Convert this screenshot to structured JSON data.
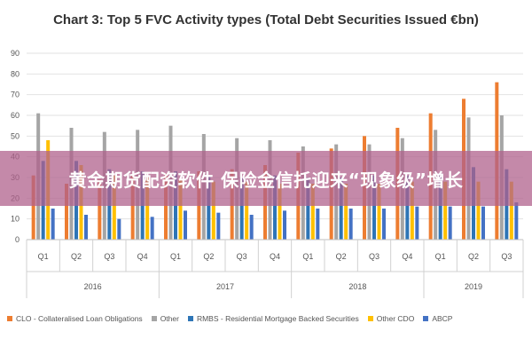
{
  "chart_data": {
    "type": "bar",
    "title": "Chart 3: Top 5 FVC Activity types (Total Debt Securities Issued €bn)",
    "ylim": [
      0,
      90
    ],
    "yticks": [
      0,
      10,
      20,
      30,
      40,
      50,
      60,
      70,
      80,
      90
    ],
    "grid": true,
    "legend_position": "bottom",
    "categories": [
      "Q1",
      "Q2",
      "Q3",
      "Q4",
      "Q1",
      "Q2",
      "Q3",
      "Q4",
      "Q1",
      "Q2",
      "Q3",
      "Q4",
      "Q1",
      "Q2",
      "Q3"
    ],
    "year_groups": [
      {
        "label": "2016",
        "count": 4
      },
      {
        "label": "2017",
        "count": 4
      },
      {
        "label": "2018",
        "count": 4
      },
      {
        "label": "2019",
        "count": 3
      }
    ],
    "series": [
      {
        "name": "CLO - Collateralised Loan Obligations",
        "color": "#ed7d31",
        "values": [
          31,
          27,
          29,
          31,
          32,
          33,
          34,
          36,
          42,
          44,
          50,
          54,
          61,
          68,
          76
        ]
      },
      {
        "name": "Other",
        "color": "#a5a5a5",
        "values": [
          61,
          54,
          52,
          53,
          55,
          51,
          49,
          48,
          45,
          46,
          46,
          49,
          53,
          59,
          60
        ]
      },
      {
        "name": "RMBS - Residential Mortgage Backed Securities",
        "color": "#2e75b6",
        "values": [
          38,
          38,
          34,
          33,
          33,
          31,
          30,
          31,
          30,
          30,
          31,
          31,
          32,
          35,
          34
        ]
      },
      {
        "name": "Other CDO",
        "color": "#ffc000",
        "values": [
          48,
          36,
          31,
          30,
          29,
          28,
          28,
          27,
          27,
          27,
          27,
          28,
          28,
          28,
          28
        ]
      },
      {
        "name": "ABCP",
        "color": "#4472c4",
        "values": [
          15,
          12,
          10,
          11,
          14,
          13,
          12,
          14,
          15,
          15,
          15,
          16,
          16,
          16,
          18
        ]
      }
    ]
  },
  "banner": {
    "text": "黄金期货配资软件 保险金信托迎来“现象级”增长"
  }
}
